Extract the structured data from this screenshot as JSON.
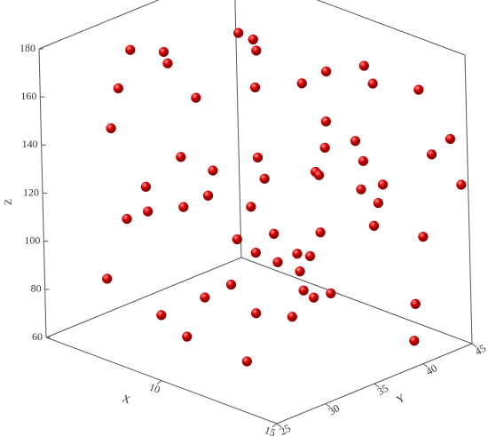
{
  "chart_data": {
    "type": "scatter3d",
    "x": [
      7.7,
      9.2,
      7.6,
      6.4,
      7.0,
      6.3,
      6.7,
      7.5,
      10.1,
      8.7,
      11.5,
      12.3,
      11.8,
      13.8,
      7.2,
      12.3,
      12.7,
      10.5,
      14.7,
      11.3,
      14.3,
      8.5,
      11.0,
      7.3,
      9.2,
      12.8,
      11.7,
      13.0,
      12.9,
      14.7,
      7.8,
      6.2,
      7.7,
      7.2,
      7.0,
      7.8,
      14.5,
      11.7,
      9.9,
      12.8,
      5.7,
      14.7,
      6.5,
      10.9,
      10.6,
      10.9,
      11.0,
      7.3,
      9.7,
      12.0,
      10.6,
      13.3,
      9.4,
      13.0,
      9.2,
      9.9,
      13.2,
      10.3,
      14.2,
      12.9
    ],
    "y": [
      39,
      37,
      41,
      31,
      33,
      35,
      29,
      35,
      35,
      43,
      39,
      41,
      43,
      43,
      27,
      37,
      39,
      41,
      44,
      43,
      43,
      31,
      33,
      37,
      43,
      35,
      44,
      29,
      39,
      45,
      29,
      39,
      33,
      41,
      31,
      27,
      37,
      43,
      37,
      35,
      43,
      41,
      43,
      37,
      39,
      35,
      37,
      26,
      33,
      35,
      41,
      33,
      31,
      44,
      27,
      35,
      31,
      27,
      41,
      27
    ],
    "z": [
      173,
      179,
      162,
      174.6,
      172.6,
      162,
      163,
      152,
      165.6,
      149,
      170.6,
      172.5,
      160,
      164.6,
      151.5,
      156,
      146,
      132,
      145.7,
      126,
      139.5,
      137.6,
      143,
      117.7,
      114,
      138.8,
      116,
      148,
      126.6,
      125,
      126,
      100,
      110.6,
      95.6,
      109.6,
      116,
      130,
      100.5,
      100.7,
      115,
      73.4,
      110,
      70.7,
      96,
      90.6,
      95.8,
      89,
      91,
      85.5,
      88,
      71.8,
      93,
      82.4,
      71,
      81,
      71,
      88,
      76,
      65,
      75
    ],
    "color": "#cc0000",
    "xlim": [
      5,
      15
    ],
    "ylim": [
      25,
      45
    ],
    "zlim": [
      60,
      180
    ],
    "xticks": [
      10,
      15
    ],
    "yticks": [
      25,
      30,
      35,
      40,
      45
    ],
    "zticks": [
      60,
      80,
      100,
      120,
      140,
      160,
      180
    ],
    "xlabel": "X",
    "ylabel": "Y",
    "zlabel": "Z"
  }
}
